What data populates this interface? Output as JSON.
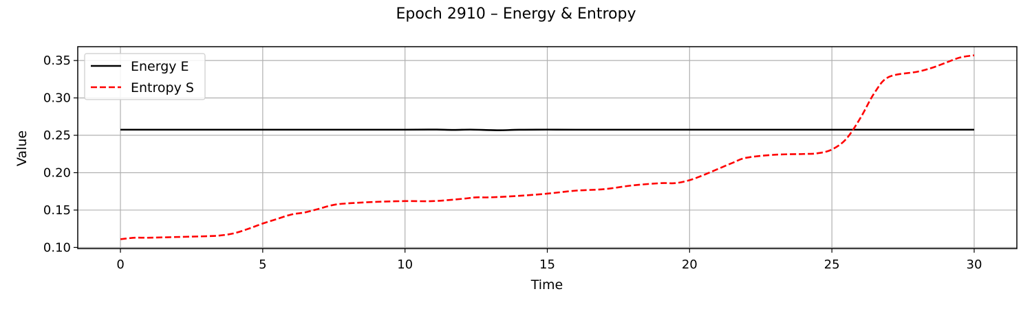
{
  "chart_data": {
    "type": "line",
    "title": "Epoch 2910 – Energy & Entropy",
    "xlabel": "Time",
    "ylabel": "Value",
    "xlim": [
      -1.5,
      31.5
    ],
    "ylim": [
      0.0985,
      0.3685
    ],
    "xticks": [
      0,
      5,
      10,
      15,
      20,
      25,
      30
    ],
    "xtick_labels": [
      "0",
      "5",
      "10",
      "15",
      "20",
      "25",
      "30"
    ],
    "yticks": [
      0.1,
      0.15,
      0.2,
      0.25,
      0.3,
      0.35
    ],
    "ytick_labels": [
      "0.10",
      "0.15",
      "0.20",
      "0.25",
      "0.30",
      "0.35"
    ],
    "grid": true,
    "legend": "top-left",
    "series": [
      {
        "name": "Energy E",
        "color": "#000000",
        "style": "solid",
        "x": [
          0,
          2,
          4,
          6,
          8,
          10,
          11,
          11.7,
          12.3,
          13,
          13.4,
          14,
          15,
          16,
          18,
          20,
          22,
          24,
          26,
          28,
          30
        ],
        "y": [
          0.2575,
          0.2575,
          0.2575,
          0.2575,
          0.2575,
          0.2575,
          0.2577,
          0.2572,
          0.2576,
          0.257,
          0.2568,
          0.2574,
          0.2576,
          0.2575,
          0.2575,
          0.2575,
          0.2575,
          0.2575,
          0.2575,
          0.2575,
          0.2575
        ]
      },
      {
        "name": "Entropy S",
        "color": "#ff0000",
        "style": "dashed",
        "x": [
          0,
          0.5,
          1,
          2,
          3,
          3.5,
          4,
          4.5,
          5,
          5.5,
          6,
          6.5,
          7,
          7.5,
          8,
          9,
          10,
          11,
          12,
          12.5,
          13,
          14,
          15,
          16,
          17,
          18,
          19,
          19.5,
          20,
          20.5,
          21,
          21.5,
          22,
          23,
          24,
          24.5,
          25,
          25.5,
          26,
          26.5,
          27,
          28,
          28.5,
          29,
          29.5,
          30
        ],
        "y": [
          0.111,
          0.113,
          0.113,
          0.114,
          0.115,
          0.116,
          0.119,
          0.125,
          0.132,
          0.138,
          0.144,
          0.147,
          0.152,
          0.157,
          0.159,
          0.161,
          0.162,
          0.162,
          0.165,
          0.167,
          0.167,
          0.169,
          0.172,
          0.176,
          0.178,
          0.183,
          0.186,
          0.186,
          0.19,
          0.197,
          0.205,
          0.213,
          0.22,
          0.224,
          0.225,
          0.226,
          0.231,
          0.245,
          0.273,
          0.307,
          0.328,
          0.335,
          0.34,
          0.347,
          0.354,
          0.357
        ]
      }
    ]
  }
}
